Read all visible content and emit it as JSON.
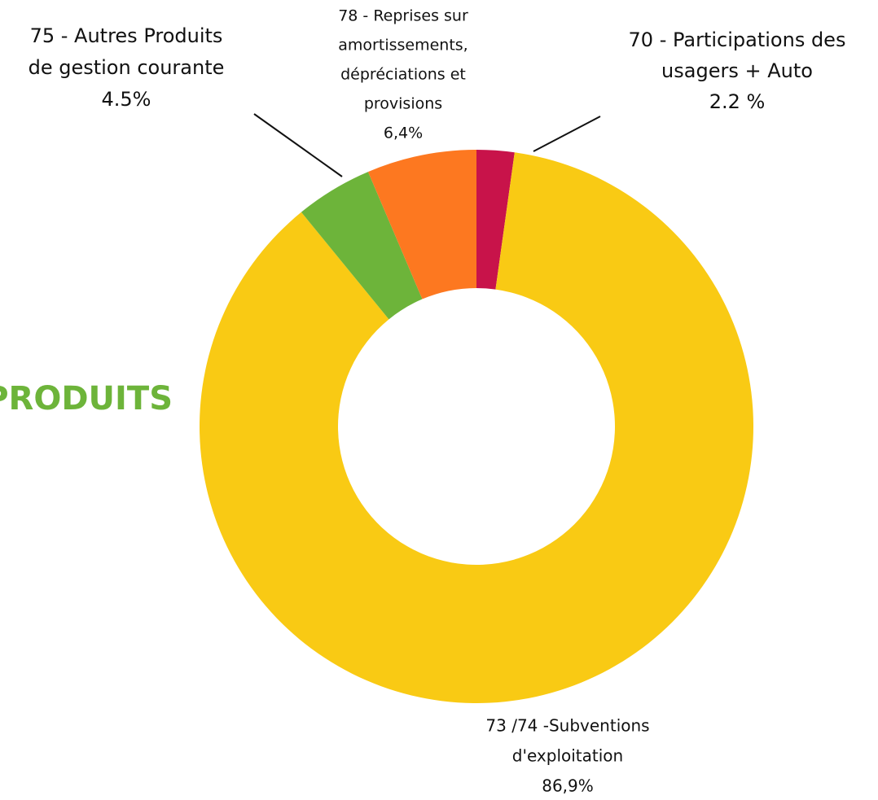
{
  "chart_data": {
    "type": "donut",
    "title": "PRODUITS",
    "categories": [
      [
        "70 - Participations des",
        "usagers + Auto"
      ],
      [
        "73 /74 -Subventions",
        "d'exploitation"
      ],
      [
        "75 - Autres Produits",
        "de gestion courante"
      ],
      [
        "78 - Reprises sur",
        "amortissements,",
        "dépréciations et",
        "provisions"
      ]
    ],
    "values": [
      2.2,
      86.9,
      4.5,
      6.4
    ],
    "value_labels": [
      "2.2 %",
      "86,9%",
      "4.5%",
      "6,4%"
    ],
    "colors": [
      "#c8134a",
      "#f9ca14",
      "#6db43a",
      "#fd7820"
    ]
  }
}
